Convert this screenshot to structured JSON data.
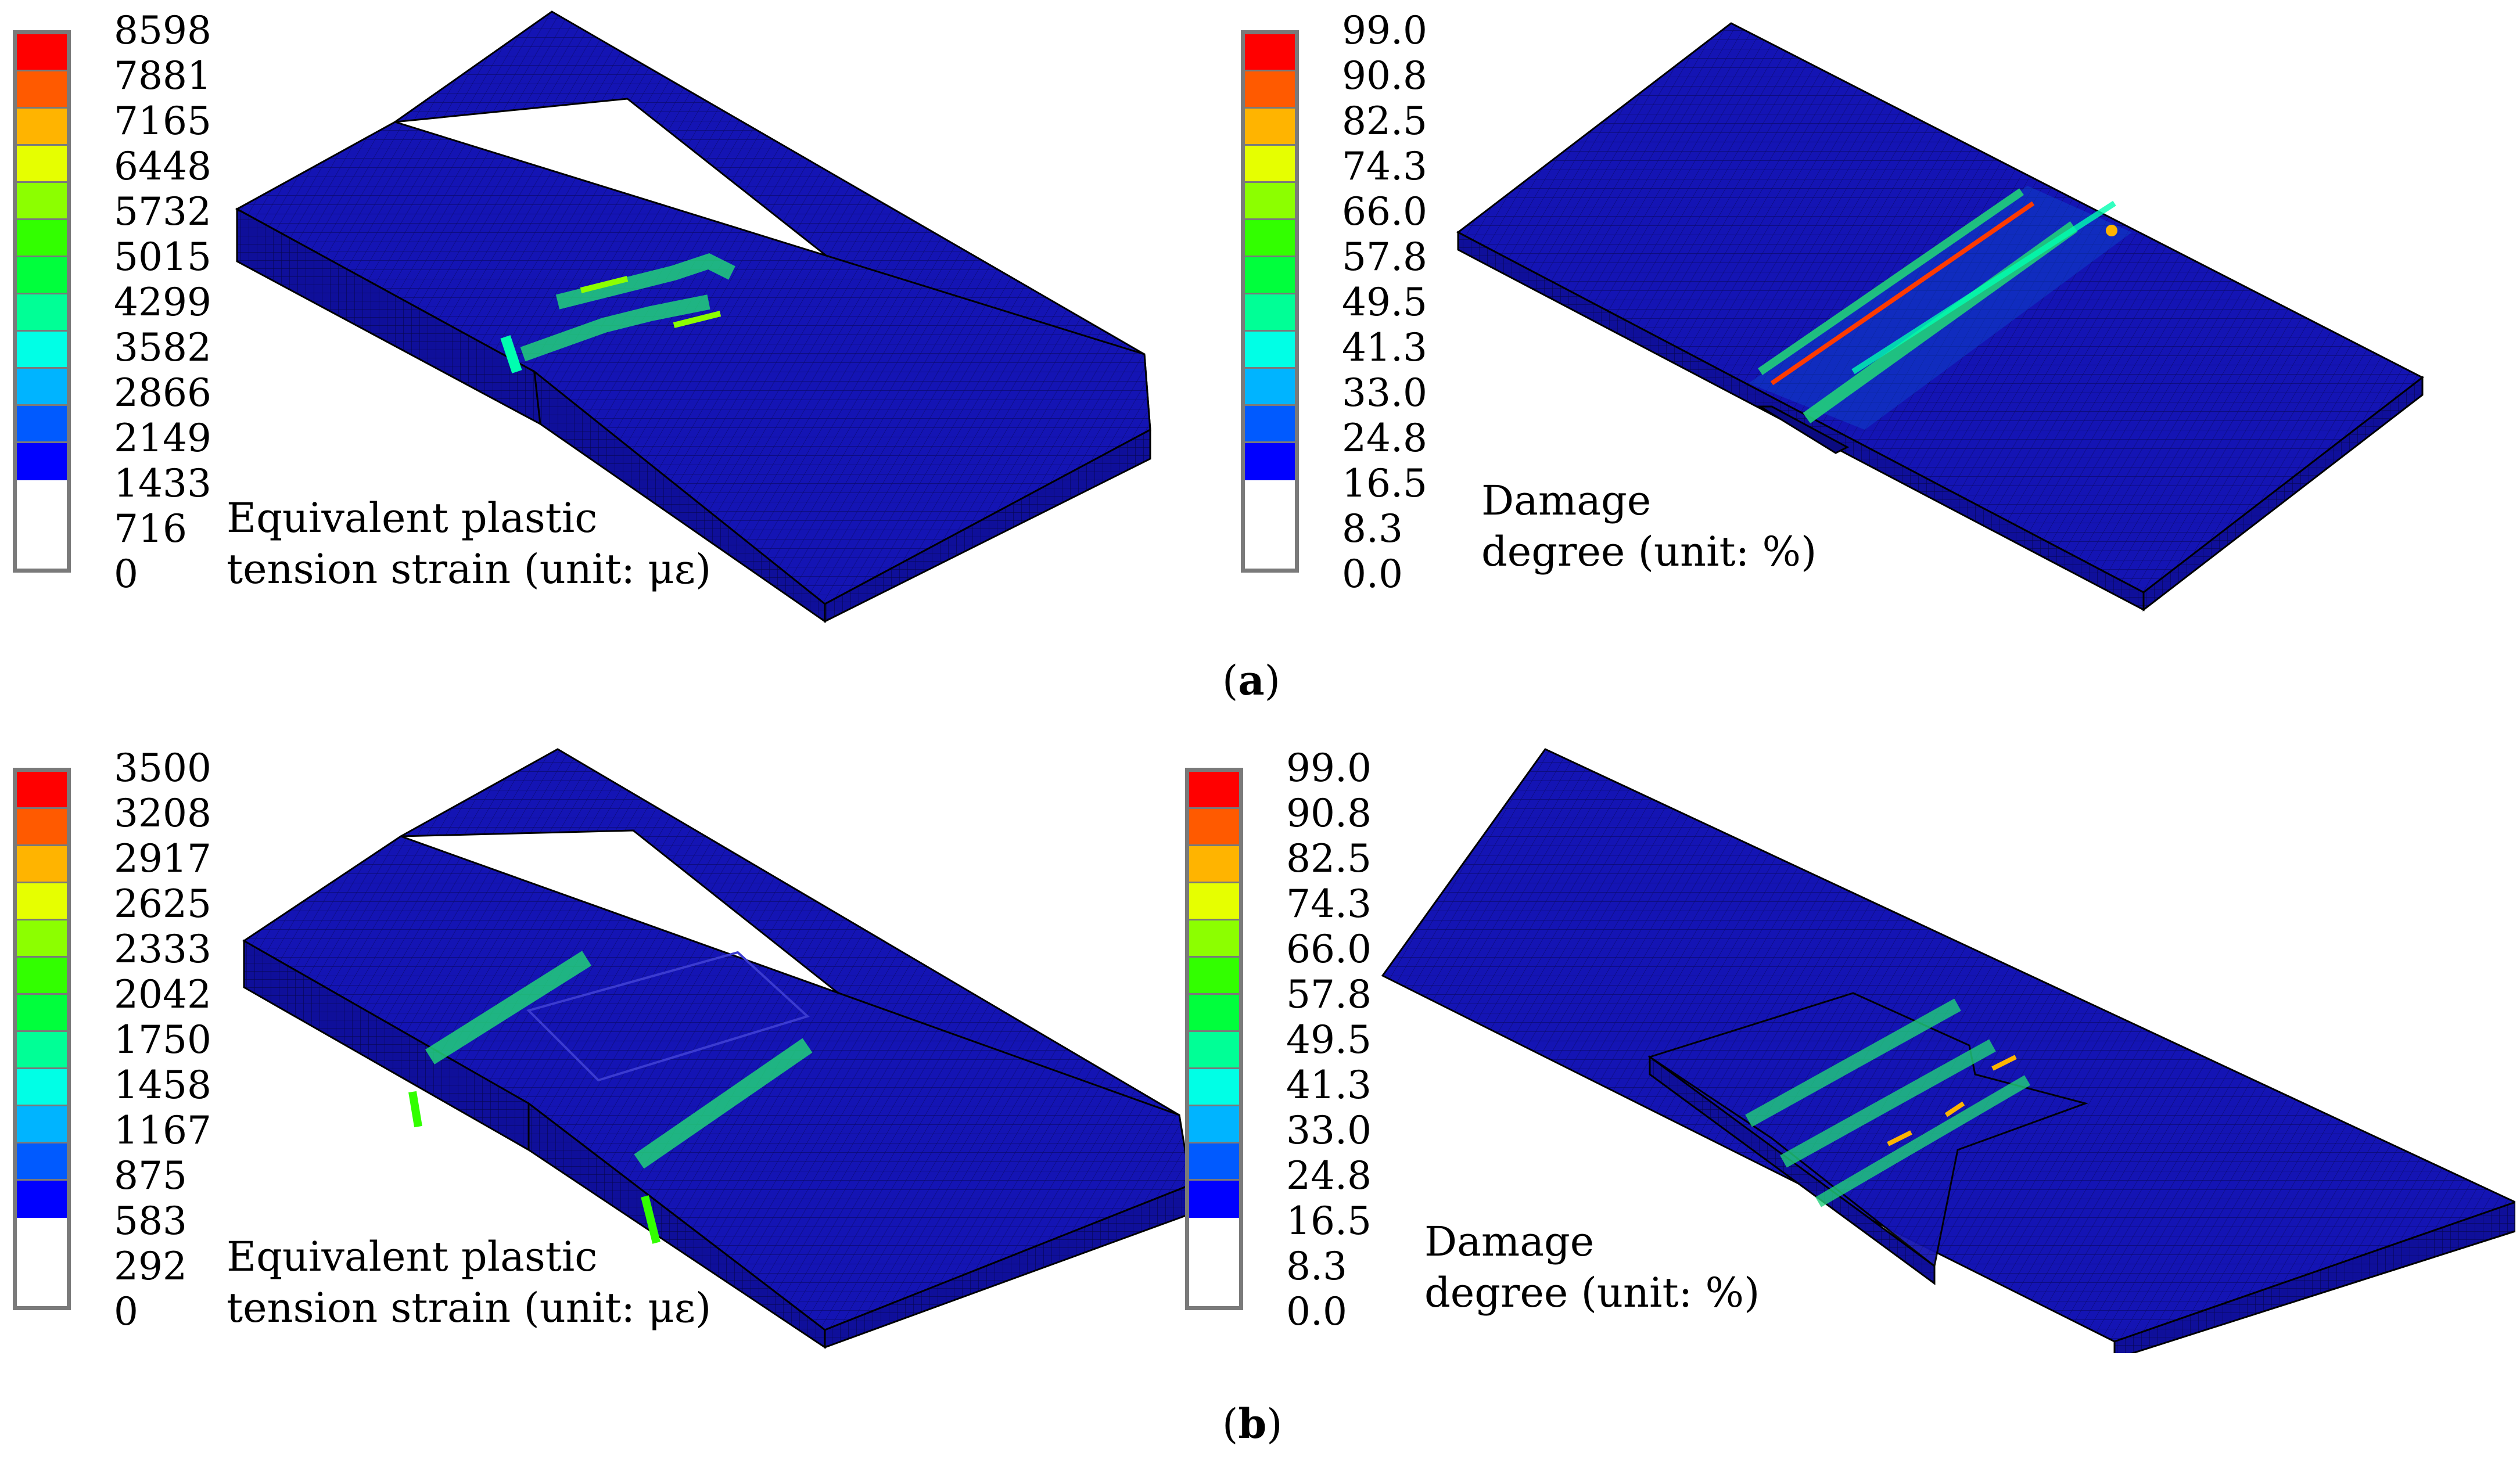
{
  "colormap": [
    "#ff0000",
    "#ff5a00",
    "#ffb400",
    "#e6ff00",
    "#8cff00",
    "#32ff00",
    "#00ff3c",
    "#00ff96",
    "#00ffe6",
    "#00b4ff",
    "#005aff",
    "#0000ff"
  ],
  "panels": [
    {
      "id": "a",
      "label": "a",
      "strain": {
        "ticks": [
          "8598",
          "7881",
          "7165",
          "6448",
          "5732",
          "5015",
          "4299",
          "3582",
          "2866",
          "2149",
          "1433",
          "716",
          "0"
        ],
        "caption_line1": "Equivalent plastic",
        "caption_line2": "tension strain (unit: με)"
      },
      "damage": {
        "ticks": [
          "99.0",
          "90.8",
          "82.5",
          "74.3",
          "66.0",
          "57.8",
          "49.5",
          "41.3",
          "33.0",
          "24.8",
          "16.5",
          "8.3",
          "0.0"
        ],
        "caption_line1": "Damage",
        "caption_line2": "degree (unit: %)"
      }
    },
    {
      "id": "b",
      "label": "b",
      "strain": {
        "ticks": [
          "3500",
          "3208",
          "2917",
          "2625",
          "2333",
          "2042",
          "1750",
          "1458",
          "1167",
          "875",
          "583",
          "292",
          "0"
        ],
        "caption_line1": "Equivalent plastic",
        "caption_line2": "tension strain (unit: με)"
      },
      "damage": {
        "ticks": [
          "99.0",
          "90.8",
          "82.5",
          "74.3",
          "66.0",
          "57.8",
          "49.5",
          "41.3",
          "33.0",
          "24.8",
          "16.5",
          "8.3",
          "0.0"
        ],
        "caption_line1": "Damage",
        "caption_line2": "degree (unit: %)"
      }
    }
  ],
  "sublabels": {
    "a_open": "(",
    "a_text": "a",
    "a_close": ")",
    "b_open": "(",
    "b_text": "b",
    "b_close": ")"
  }
}
